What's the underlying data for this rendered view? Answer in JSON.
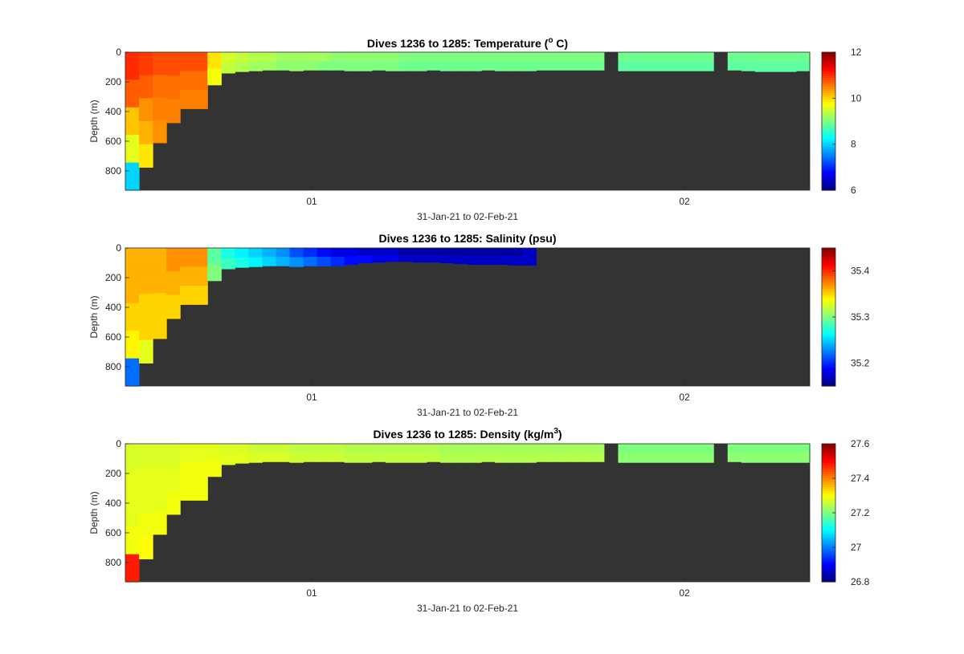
{
  "figure_background": "#ffffff",
  "chart_data": [
    {
      "type": "heatmap",
      "title_text": "Dives 1236 to 1285: Temperature (",
      "title_sup": "o",
      "title_end": " C)",
      "xlabel": "31-Jan-21 to 02-Feb-21",
      "ylabel": "Depth (m)",
      "x_ticks": [
        "01",
        "02"
      ],
      "y_ticks": [
        0,
        200,
        400,
        600,
        800
      ],
      "ylim": [
        0,
        930
      ],
      "colorbar": {
        "min": 6,
        "max": 12,
        "ticks": [
          6,
          8,
          10,
          12
        ]
      },
      "columns": [
        {
          "v": [
            11.0,
            10.7,
            10.1,
            9.6,
            8.0
          ],
          "d": 930
        },
        {
          "v": [
            10.9,
            10.7,
            10.4,
            10.2,
            9.9
          ],
          "d": 775
        },
        {
          "v": [
            10.8,
            10.6,
            10.5,
            10.4
          ],
          "d": 610
        },
        {
          "v": [
            10.8,
            10.6,
            10.5
          ],
          "d": 475
        },
        {
          "v": [
            10.8,
            10.6,
            10.5
          ],
          "d": 380
        },
        {
          "v": [
            10.8,
            10.6,
            10.5
          ],
          "d": 380
        },
        {
          "v": [
            9.9,
            9.7
          ],
          "d": 220
        },
        {
          "v": [
            9.5,
            9.4
          ],
          "d": 140
        },
        {
          "v": [
            9.4,
            9.3
          ],
          "d": 130
        },
        {
          "v": [
            9.3,
            9.2
          ],
          "d": 125
        },
        {
          "v": [
            9.3,
            9.2
          ],
          "d": 120
        },
        {
          "v": [
            9.2,
            9.1
          ],
          "d": 120
        },
        {
          "v": [
            9.2,
            9.1
          ],
          "d": 125
        },
        {
          "v": [
            9.2,
            9.1
          ],
          "d": 120
        },
        {
          "v": [
            9.2,
            9.0
          ],
          "d": 120
        },
        {
          "v": [
            9.1,
            9.0
          ],
          "d": 120
        },
        {
          "v": [
            9.1,
            9.0
          ],
          "d": 125
        },
        {
          "v": [
            9.1,
            9.0
          ],
          "d": 125
        },
        {
          "v": [
            9.1,
            9.0
          ],
          "d": 120
        },
        {
          "v": [
            9.1,
            9.0
          ],
          "d": 125
        },
        {
          "v": [
            9.0,
            8.9
          ],
          "d": 125
        },
        {
          "v": [
            9.0,
            8.9
          ],
          "d": 125
        },
        {
          "v": [
            9.0,
            8.9
          ],
          "d": 120
        },
        {
          "v": [
            9.0,
            8.9
          ],
          "d": 125
        },
        {
          "v": [
            9.0,
            8.9
          ],
          "d": 125
        },
        {
          "v": [
            9.0,
            8.9
          ],
          "d": 125
        },
        {
          "v": [
            9.0,
            8.9
          ],
          "d": 120
        },
        {
          "v": [
            9.0,
            8.9
          ],
          "d": 125
        },
        {
          "v": [
            9.0,
            8.9
          ],
          "d": 125
        },
        {
          "v": [
            9.0,
            8.9
          ],
          "d": 125
        },
        {
          "v": [
            9.0,
            8.9
          ],
          "d": 120
        },
        {
          "v": [
            9.0,
            8.9
          ],
          "d": 120
        },
        {
          "v": [
            9.0,
            8.9
          ],
          "d": 120
        },
        {
          "v": [
            9.0,
            8.9
          ],
          "d": 120
        },
        {
          "v": [
            9.0,
            8.9
          ],
          "d": 120
        },
        {
          "v": [],
          "d": 0
        },
        {
          "v": [
            8.9,
            8.8
          ],
          "d": 125
        },
        {
          "v": [
            8.9,
            8.8
          ],
          "d": 125
        },
        {
          "v": [
            8.9,
            8.8
          ],
          "d": 125
        },
        {
          "v": [
            8.9,
            8.8
          ],
          "d": 125
        },
        {
          "v": [
            8.9,
            8.8
          ],
          "d": 125
        },
        {
          "v": [
            8.9,
            8.8
          ],
          "d": 125
        },
        {
          "v": [
            8.9,
            8.8
          ],
          "d": 125
        },
        {
          "v": [],
          "d": 0
        },
        {
          "v": [
            8.9,
            8.8
          ],
          "d": 120
        },
        {
          "v": [
            8.9,
            8.8
          ],
          "d": 125
        },
        {
          "v": [
            8.9,
            8.8
          ],
          "d": 130
        },
        {
          "v": [
            8.9,
            8.8
          ],
          "d": 130
        },
        {
          "v": [
            8.9,
            8.8
          ],
          "d": 130
        },
        {
          "v": [
            8.9,
            8.8
          ],
          "d": 125
        }
      ]
    },
    {
      "type": "heatmap",
      "title_text": "Dives 1236 to 1285: Salinity (psu)",
      "title_sup": "",
      "title_end": "",
      "xlabel": "31-Jan-21 to 02-Feb-21",
      "ylabel": "Depth (m)",
      "x_ticks": [
        "01",
        "02"
      ],
      "y_ticks": [
        0,
        200,
        400,
        600,
        800
      ],
      "ylim": [
        0,
        930
      ],
      "colorbar": {
        "min": 35.15,
        "max": 35.45,
        "ticks": [
          35.2,
          35.3,
          35.4
        ]
      },
      "columns": [
        {
          "v": [
            35.36,
            35.36,
            35.35,
            35.34,
            35.22
          ],
          "d": 930
        },
        {
          "v": [
            35.36,
            35.36,
            35.35,
            35.35,
            35.33
          ],
          "d": 775
        },
        {
          "v": [
            35.36,
            35.36,
            35.35,
            35.35
          ],
          "d": 610
        },
        {
          "v": [
            35.37,
            35.36,
            35.35
          ],
          "d": 475
        },
        {
          "v": [
            35.37,
            35.36,
            35.35
          ],
          "d": 380
        },
        {
          "v": [
            35.37,
            35.36,
            35.35
          ],
          "d": 380
        },
        {
          "v": [
            35.29,
            35.3
          ],
          "d": 220
        },
        {
          "v": [
            35.27,
            35.28
          ],
          "d": 140
        },
        {
          "v": [
            35.26,
            35.27
          ],
          "d": 130
        },
        {
          "v": [
            35.25,
            35.26
          ],
          "d": 125
        },
        {
          "v": [
            35.24,
            35.25
          ],
          "d": 120
        },
        {
          "v": [
            35.23,
            35.24
          ],
          "d": 120
        },
        {
          "v": [
            35.21,
            35.23
          ],
          "d": 125
        },
        {
          "v": [
            35.2,
            35.22
          ],
          "d": 120
        },
        {
          "v": [
            35.19,
            35.21
          ],
          "d": 120
        },
        {
          "v": [
            35.18,
            35.2
          ],
          "d": 120
        },
        {
          "v": [
            35.18,
            35.19
          ],
          "d": 110
        },
        {
          "v": [
            35.17,
            35.19
          ],
          "d": 100
        },
        {
          "v": [
            35.17,
            35.18
          ],
          "d": 95
        },
        {
          "v": [
            35.17,
            35.18
          ],
          "d": 90
        },
        {
          "v": [
            35.16,
            35.17
          ],
          "d": 90
        },
        {
          "v": [
            35.16,
            35.17
          ],
          "d": 95
        },
        {
          "v": [
            35.16,
            35.17
          ],
          "d": 95
        },
        {
          "v": [
            35.16,
            35.17
          ],
          "d": 100
        },
        {
          "v": [
            35.16,
            35.17
          ],
          "d": 105
        },
        {
          "v": [
            35.16,
            35.17
          ],
          "d": 110
        },
        {
          "v": [
            35.16,
            35.17
          ],
          "d": 110
        },
        {
          "v": [
            35.16,
            35.17
          ],
          "d": 110
        },
        {
          "v": [
            35.16,
            35.17
          ],
          "d": 115
        },
        {
          "v": [
            35.17
          ],
          "d": 115
        },
        {
          "v": [],
          "d": 0
        },
        {
          "v": [],
          "d": 0
        },
        {
          "v": [],
          "d": 0
        },
        {
          "v": [],
          "d": 0
        },
        {
          "v": [],
          "d": 0
        },
        {
          "v": [],
          "d": 0
        },
        {
          "v": [],
          "d": 0
        },
        {
          "v": [],
          "d": 0
        },
        {
          "v": [],
          "d": 0
        },
        {
          "v": [],
          "d": 0
        },
        {
          "v": [],
          "d": 0
        },
        {
          "v": [],
          "d": 0
        },
        {
          "v": [],
          "d": 0
        },
        {
          "v": [],
          "d": 0
        },
        {
          "v": [],
          "d": 0
        },
        {
          "v": [],
          "d": 0
        },
        {
          "v": [],
          "d": 0
        },
        {
          "v": [],
          "d": 0
        },
        {
          "v": [],
          "d": 0
        },
        {
          "v": [],
          "d": 0
        }
      ]
    },
    {
      "type": "heatmap",
      "title_text": "Dives 1236 to 1285: Density (kg/m",
      "title_sup": "3",
      "title_end": ")",
      "xlabel": "31-Jan-21 to 02-Feb-21",
      "ylabel": "Depth (m)",
      "x_ticks": [
        "01",
        "02"
      ],
      "y_ticks": [
        0,
        200,
        400,
        600,
        800
      ],
      "ylim": [
        0,
        930
      ],
      "colorbar": {
        "min": 26.8,
        "max": 27.6,
        "ticks": [
          26.8,
          27,
          27.2,
          27.4,
          27.6
        ]
      },
      "columns": [
        {
          "v": [
            27.27,
            27.28,
            27.28,
            27.29,
            27.48
          ],
          "d": 930
        },
        {
          "v": [
            27.27,
            27.28,
            27.28,
            27.29,
            27.3
          ],
          "d": 775
        },
        {
          "v": [
            27.27,
            27.28,
            27.28,
            27.29
          ],
          "d": 610
        },
        {
          "v": [
            27.27,
            27.28,
            27.29
          ],
          "d": 475
        },
        {
          "v": [
            27.28,
            27.29,
            27.29
          ],
          "d": 380
        },
        {
          "v": [
            27.28,
            27.29,
            27.29
          ],
          "d": 380
        },
        {
          "v": [
            27.28,
            27.29
          ],
          "d": 220
        },
        {
          "v": [
            27.27,
            27.28
          ],
          "d": 140
        },
        {
          "v": [
            27.27,
            27.28
          ],
          "d": 130
        },
        {
          "v": [
            27.26,
            27.27
          ],
          "d": 125
        },
        {
          "v": [
            27.26,
            27.27
          ],
          "d": 120
        },
        {
          "v": [
            27.26,
            27.27
          ],
          "d": 120
        },
        {
          "v": [
            27.25,
            27.26
          ],
          "d": 125
        },
        {
          "v": [
            27.25,
            27.26
          ],
          "d": 120
        },
        {
          "v": [
            27.25,
            27.26
          ],
          "d": 120
        },
        {
          "v": [
            27.25,
            27.26
          ],
          "d": 120
        },
        {
          "v": [
            27.24,
            27.25
          ],
          "d": 125
        },
        {
          "v": [
            27.24,
            27.25
          ],
          "d": 125
        },
        {
          "v": [
            27.24,
            27.25
          ],
          "d": 120
        },
        {
          "v": [
            27.24,
            27.25
          ],
          "d": 125
        },
        {
          "v": [
            27.24,
            27.25
          ],
          "d": 125
        },
        {
          "v": [
            27.24,
            27.25
          ],
          "d": 125
        },
        {
          "v": [
            27.24,
            27.25
          ],
          "d": 120
        },
        {
          "v": [
            27.23,
            27.24
          ],
          "d": 125
        },
        {
          "v": [
            27.23,
            27.24
          ],
          "d": 125
        },
        {
          "v": [
            27.23,
            27.24
          ],
          "d": 125
        },
        {
          "v": [
            27.23,
            27.24
          ],
          "d": 120
        },
        {
          "v": [
            27.23,
            27.24
          ],
          "d": 125
        },
        {
          "v": [
            27.23,
            27.24
          ],
          "d": 125
        },
        {
          "v": [
            27.23,
            27.24
          ],
          "d": 125
        },
        {
          "v": [
            27.23,
            27.24
          ],
          "d": 120
        },
        {
          "v": [
            27.23,
            27.24
          ],
          "d": 120
        },
        {
          "v": [
            27.23,
            27.24
          ],
          "d": 120
        },
        {
          "v": [
            27.23,
            27.24
          ],
          "d": 120
        },
        {
          "v": [
            27.23,
            27.24
          ],
          "d": 120
        },
        {
          "v": [],
          "d": 0
        },
        {
          "v": [
            27.2,
            27.21
          ],
          "d": 125
        },
        {
          "v": [
            27.2,
            27.21
          ],
          "d": 125
        },
        {
          "v": [
            27.2,
            27.21
          ],
          "d": 125
        },
        {
          "v": [
            27.2,
            27.21
          ],
          "d": 125
        },
        {
          "v": [
            27.2,
            27.21
          ],
          "d": 125
        },
        {
          "v": [
            27.2,
            27.21
          ],
          "d": 125
        },
        {
          "v": [
            27.2,
            27.21
          ],
          "d": 125
        },
        {
          "v": [],
          "d": 0
        },
        {
          "v": [
            27.2,
            27.21
          ],
          "d": 120
        },
        {
          "v": [
            27.2,
            27.21
          ],
          "d": 125
        },
        {
          "v": [
            27.2,
            27.21
          ],
          "d": 125
        },
        {
          "v": [
            27.2,
            27.21
          ],
          "d": 125
        },
        {
          "v": [
            27.2,
            27.21
          ],
          "d": 125
        },
        {
          "v": [
            27.2,
            27.21
          ],
          "d": 125
        }
      ]
    }
  ]
}
